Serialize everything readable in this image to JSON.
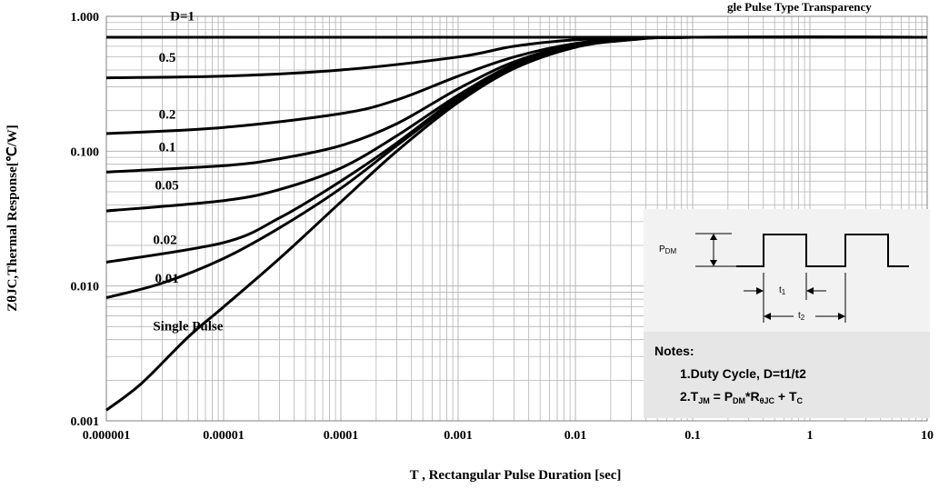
{
  "chart_data": {
    "type": "line",
    "title": "gle Pulse Type Transparency",
    "xlabel": "T , Rectangular Pulse Duration [sec]",
    "ylabel": "ZθJC,Thermal Response[℃/W]",
    "x_scale": "log",
    "y_scale": "log",
    "xlim": [
      1e-06,
      10
    ],
    "ylim": [
      0.001,
      1
    ],
    "grid": true,
    "x_ticks": [
      {
        "value": 1e-06,
        "label": "0.000001"
      },
      {
        "value": 1e-05,
        "label": "0.00001"
      },
      {
        "value": 0.0001,
        "label": "0.0001"
      },
      {
        "value": 0.001,
        "label": "0.001"
      },
      {
        "value": 0.01,
        "label": "0.01"
      },
      {
        "value": 0.1,
        "label": "0.1"
      },
      {
        "value": 1,
        "label": "1"
      },
      {
        "value": 10,
        "label": "10"
      }
    ],
    "y_ticks": [
      {
        "value": 0.001,
        "label": "0.001"
      },
      {
        "value": 0.01,
        "label": "0.010"
      },
      {
        "value": 0.1,
        "label": "0.100"
      },
      {
        "value": 1,
        "label": "1.000"
      }
    ],
    "series": [
      {
        "name": "D=1",
        "label_at": [
          3.5e-06,
          0.93
        ],
        "points": [
          [
            1e-06,
            0.7
          ],
          [
            10,
            0.7
          ]
        ]
      },
      {
        "name": "0.5",
        "label_at": [
          2.8e-06,
          0.46
        ],
        "points": [
          [
            1e-06,
            0.35
          ],
          [
            1e-05,
            0.36
          ],
          [
            0.0001,
            0.4
          ],
          [
            0.001,
            0.5
          ],
          [
            0.003,
            0.6
          ],
          [
            0.01,
            0.67
          ],
          [
            0.03,
            0.69
          ],
          [
            0.1,
            0.7
          ],
          [
            10,
            0.7
          ]
        ]
      },
      {
        "name": "0.2",
        "label_at": [
          2.8e-06,
          0.175
        ],
        "points": [
          [
            1e-06,
            0.135
          ],
          [
            1e-05,
            0.15
          ],
          [
            0.0001,
            0.19
          ],
          [
            0.0003,
            0.24
          ],
          [
            0.001,
            0.36
          ],
          [
            0.003,
            0.5
          ],
          [
            0.01,
            0.63
          ],
          [
            0.03,
            0.68
          ],
          [
            0.1,
            0.7
          ],
          [
            10,
            0.7
          ]
        ]
      },
      {
        "name": "0.1",
        "label_at": [
          2.8e-06,
          0.1
        ],
        "points": [
          [
            1e-06,
            0.07
          ],
          [
            1e-05,
            0.078
          ],
          [
            3e-05,
            0.088
          ],
          [
            0.0001,
            0.11
          ],
          [
            0.0003,
            0.16
          ],
          [
            0.001,
            0.29
          ],
          [
            0.003,
            0.46
          ],
          [
            0.01,
            0.62
          ],
          [
            0.03,
            0.68
          ],
          [
            0.1,
            0.7
          ],
          [
            10,
            0.7
          ]
        ]
      },
      {
        "name": "0.05",
        "label_at": [
          2.6e-06,
          0.052
        ],
        "points": [
          [
            1e-06,
            0.036
          ],
          [
            1e-05,
            0.043
          ],
          [
            3e-05,
            0.052
          ],
          [
            0.0001,
            0.075
          ],
          [
            0.0003,
            0.13
          ],
          [
            0.001,
            0.26
          ],
          [
            0.003,
            0.44
          ],
          [
            0.01,
            0.61
          ],
          [
            0.03,
            0.68
          ],
          [
            0.1,
            0.7
          ],
          [
            10,
            0.7
          ]
        ]
      },
      {
        "name": "0.02",
        "label_at": [
          2.5e-06,
          0.0205
        ],
        "points": [
          [
            1e-06,
            0.015
          ],
          [
            1e-05,
            0.021
          ],
          [
            3e-05,
            0.032
          ],
          [
            0.0001,
            0.06
          ],
          [
            0.0003,
            0.115
          ],
          [
            0.001,
            0.25
          ],
          [
            0.003,
            0.43
          ],
          [
            0.01,
            0.6
          ],
          [
            0.03,
            0.68
          ],
          [
            0.1,
            0.7
          ],
          [
            10,
            0.7
          ]
        ]
      },
      {
        "name": "0.01",
        "label_at": [
          2.6e-06,
          0.0106
        ],
        "points": [
          [
            1e-06,
            0.0082
          ],
          [
            3e-06,
            0.0105
          ],
          [
            1e-05,
            0.016
          ],
          [
            3e-05,
            0.027
          ],
          [
            0.0001,
            0.053
          ],
          [
            0.0003,
            0.11
          ],
          [
            0.001,
            0.24
          ],
          [
            0.003,
            0.42
          ],
          [
            0.01,
            0.6
          ],
          [
            0.03,
            0.68
          ],
          [
            0.1,
            0.7
          ],
          [
            10,
            0.7
          ]
        ]
      },
      {
        "name": "Single Pulse",
        "label_at": [
          2.5e-06,
          0.0047
        ],
        "points": [
          [
            1e-06,
            0.0012
          ],
          [
            2e-06,
            0.0019
          ],
          [
            5e-06,
            0.0042
          ],
          [
            1e-05,
            0.007
          ],
          [
            3e-05,
            0.016
          ],
          [
            0.0001,
            0.042
          ],
          [
            0.0003,
            0.1
          ],
          [
            0.001,
            0.23
          ],
          [
            0.003,
            0.41
          ],
          [
            0.01,
            0.59
          ],
          [
            0.03,
            0.67
          ],
          [
            0.1,
            0.7
          ],
          [
            10,
            0.7
          ]
        ]
      }
    ]
  },
  "inset": {
    "pdm_label": "P",
    "pdm_sub": "DM",
    "t1_label": "t",
    "t1_sub": "1",
    "t2_label": "t",
    "t2_sub": "2",
    "notes_title": "Notes:",
    "note1": "1.Duty  Cycle, D=t1/t2",
    "note2_main": "2.T",
    "note2_jm": "JM",
    "note2_eq": " = P",
    "note2_dm": "DM",
    "note2_r": "*R",
    "note2_rsub": "θJC",
    "note2_plus": " + T",
    "note2_c": "C"
  },
  "colors": {
    "curve": "#000000",
    "grid": "#b4b4b4",
    "inset_bg": "#f2f2f2",
    "notes_bg": "#e6e6e6"
  }
}
